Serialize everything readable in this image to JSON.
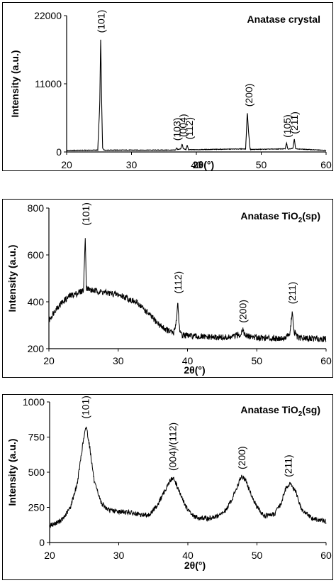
{
  "chart_data": [
    {
      "type": "line",
      "title": "Anatase crystal",
      "xlabel": "2θ(°)",
      "ylabel": "Intensity (a.u.)",
      "xlim": [
        20,
        60
      ],
      "ylim": [
        0,
        22000
      ],
      "xticks": [
        20,
        30,
        40,
        50,
        60
      ],
      "yticks": [
        0,
        11000,
        22000
      ],
      "grid": false,
      "series": [
        {
          "x": [
            20,
            24.8,
            25.1,
            25.25,
            25.4,
            25.55,
            25.8,
            36.8,
            36.95,
            37.1,
            37.6,
            37.8,
            38.0,
            38.4,
            38.6,
            38.8,
            47.6,
            47.85,
            48.05,
            48.3,
            53.7,
            53.9,
            54.1,
            54.9,
            55.1,
            55.3,
            60
          ],
          "y": [
            250,
            300,
            7500,
            18500,
            8000,
            600,
            300,
            300,
            700,
            400,
            500,
            1300,
            500,
            400,
            1100,
            350,
            500,
            6500,
            3200,
            400,
            500,
            1500,
            450,
            600,
            2200,
            500,
            250
          ]
        }
      ],
      "annotations": [
        {
          "text": "(101)",
          "x": 25.3,
          "y": 19200
        },
        {
          "text": "(103)",
          "x": 37.0,
          "y": 1800
        },
        {
          "text": "(004)",
          "x": 37.9,
          "y": 2400
        },
        {
          "text": "(112)",
          "x": 38.9,
          "y": 2000
        },
        {
          "text": "(200)",
          "x": 48.1,
          "y": 7300
        },
        {
          "text": "(105)",
          "x": 54.0,
          "y": 2300
        },
        {
          "text": "(211)",
          "x": 55.1,
          "y": 2900
        }
      ]
    },
    {
      "type": "line",
      "title": "Anatase TiO",
      "title_sub": "2",
      "title_tail": "(sp)",
      "xlabel": "2θ(°)",
      "ylabel": "Intensity (a.u.)",
      "xlim": [
        20,
        60
      ],
      "ylim": [
        200,
        800
      ],
      "xticks": [
        20,
        30,
        40,
        50,
        60
      ],
      "yticks": [
        200,
        400,
        600,
        800
      ],
      "grid": false,
      "series": [
        {
          "x": [
            20,
            21,
            22,
            23,
            24,
            25,
            25.25,
            25.4,
            26,
            27,
            28,
            29,
            30,
            31,
            32,
            33,
            34,
            35,
            36,
            37,
            38,
            38.4,
            38.6,
            38.8,
            39,
            40,
            42,
            44,
            46,
            47.6,
            48,
            48.3,
            50,
            52,
            54,
            54.8,
            55.1,
            55.4,
            56,
            58,
            60
          ],
          "y": [
            320,
            370,
            400,
            425,
            435,
            450,
            690,
            460,
            450,
            445,
            440,
            435,
            430,
            420,
            405,
            390,
            360,
            330,
            300,
            280,
            265,
            320,
            400,
            300,
            260,
            255,
            250,
            248,
            247,
            260,
            285,
            255,
            248,
            245,
            245,
            265,
            355,
            270,
            245,
            243,
            242
          ]
        }
      ],
      "annotations": [
        {
          "text": "(101)",
          "x": 25.3,
          "y": 725
        },
        {
          "text": "(112)",
          "x": 38.6,
          "y": 435
        },
        {
          "text": "(200)",
          "x": 48.0,
          "y": 310
        },
        {
          "text": "(211)",
          "x": 55.1,
          "y": 390
        }
      ]
    },
    {
      "type": "line",
      "title": "Anatase TiO",
      "title_sub": "2",
      "title_tail": "(sg)",
      "xlabel": "2θ(°)",
      "ylabel": "Intensity (a.u.)",
      "xlim": [
        20,
        60
      ],
      "ylim": [
        0,
        1000
      ],
      "xticks": [
        20,
        30,
        40,
        50,
        60
      ],
      "yticks": [
        0,
        250,
        500,
        750,
        1000
      ],
      "grid": false,
      "series": [
        {
          "x": [
            20,
            21,
            22,
            23,
            24,
            24.8,
            25.3,
            25.8,
            26.5,
            27.5,
            28.5,
            30,
            31.5,
            33,
            34.5,
            35.5,
            36.5,
            37.3,
            37.8,
            38.3,
            39,
            40,
            41,
            43,
            44.5,
            45.5,
            46.5,
            47.3,
            47.8,
            48.3,
            49,
            50,
            51,
            52.5,
            53.5,
            54.2,
            54.8,
            55.6,
            56.5,
            58,
            60
          ],
          "y": [
            120,
            140,
            170,
            250,
            420,
            700,
            830,
            680,
            420,
            280,
            230,
            220,
            215,
            195,
            200,
            260,
            350,
            430,
            460,
            420,
            330,
            230,
            180,
            170,
            190,
            230,
            320,
            420,
            470,
            450,
            360,
            250,
            190,
            200,
            280,
            390,
            420,
            360,
            230,
            170,
            150
          ]
        }
      ],
      "annotations": [
        {
          "text": "(101)",
          "x": 25.2,
          "y": 880
        },
        {
          "text": "(004)/(112)",
          "x": 37.8,
          "y": 510
        },
        {
          "text": "(200)",
          "x": 47.8,
          "y": 520
        },
        {
          "text": "(211)",
          "x": 54.5,
          "y": 465
        }
      ]
    }
  ]
}
